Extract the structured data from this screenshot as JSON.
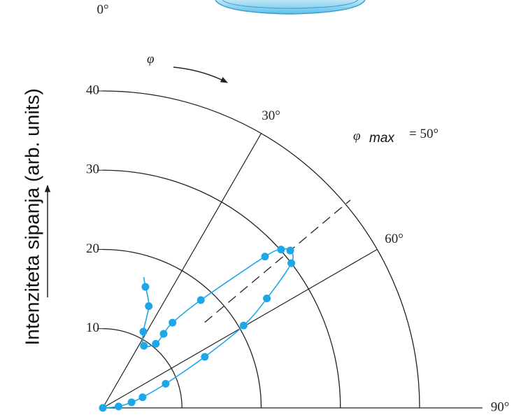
{
  "chart_data": {
    "type": "polar",
    "y_label": "Intenziteta sipanja (arb. units)",
    "rotation_symbol": "φ",
    "phi_max": {
      "symbol": "φ",
      "subscript": "max",
      "label": "= 50°",
      "angle": 50
    },
    "rlim": [
      0,
      40
    ],
    "rticks": [
      10,
      20,
      30,
      40
    ],
    "thetalim": [
      0,
      90
    ],
    "thetaticks": [
      {
        "value": 0,
        "label": "0°"
      },
      {
        "value": 30,
        "label": "30°"
      },
      {
        "value": 60,
        "label": "60°"
      },
      {
        "value": 90,
        "label": "90°"
      }
    ],
    "series": [
      {
        "color": "#1ea7e8",
        "x": [
          85,
          79,
          75,
          69,
          63.4,
          59.7,
          56.3,
          52.5,
          50,
          48.4,
          47,
          42.3,
          39.3,
          39.4,
          39.6,
          33.5,
          28,
          24.3,
          19.4
        ],
        "values": [
          2.0,
          3.7,
          5.2,
          8.5,
          14.4,
          20.6,
          24.9,
          30.0,
          30.9,
          30.1,
          28.0,
          18.4,
          13.9,
          12.1,
          10.5,
          9.4,
          10.9,
          14.1,
          16.2
        ]
      }
    ]
  }
}
